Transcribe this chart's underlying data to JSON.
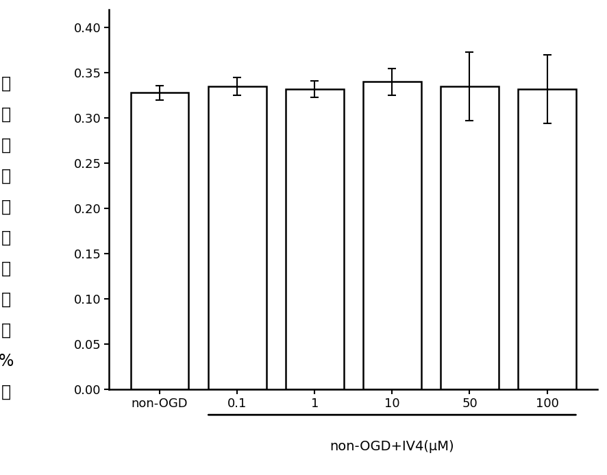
{
  "categories": [
    "non-OGD",
    "0.1",
    "1",
    "10",
    "50",
    "100"
  ],
  "values": [
    0.328,
    0.335,
    0.332,
    0.34,
    0.335,
    0.332
  ],
  "errors": [
    0.008,
    0.01,
    0.009,
    0.015,
    0.038,
    0.038
  ],
  "bar_color": "#ffffff",
  "bar_edgecolor": "#000000",
  "bar_linewidth": 1.8,
  "bar_width": 0.75,
  "ylim": [
    0.0,
    0.42
  ],
  "ylim_display": [
    0.0,
    0.4
  ],
  "yticks": [
    0.0,
    0.05,
    0.1,
    0.15,
    0.2,
    0.25,
    0.3,
    0.35,
    0.4
  ],
  "ylabel_chars": [
    "乳",
    "酸",
    "脱",
    "氮",
    "酶",
    "漏",
    "出",
    "率",
    "（",
    "%",
    "）"
  ],
  "xlabel_main": "non-OGD+IV4(μM)",
  "xlabel_main_fontsize": 14,
  "tick_fontsize": 13,
  "capsize": 4,
  "error_linewidth": 1.5,
  "background_color": "#ffffff",
  "spine_linewidth": 1.8
}
